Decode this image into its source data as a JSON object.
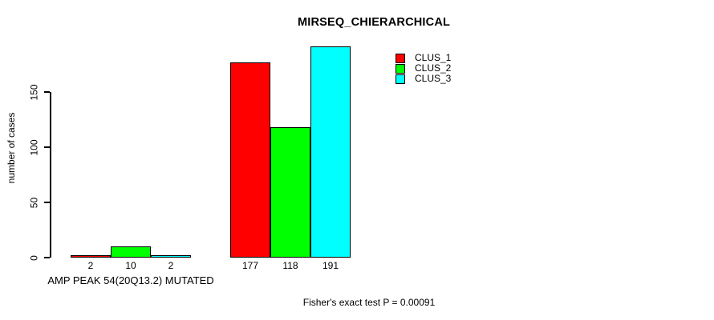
{
  "colors": {
    "background": "#ffffff",
    "axis": "#000000",
    "text": "#000000"
  },
  "chart_data": {
    "type": "bar",
    "title": "MIRSEQ_CHIERARCHICAL",
    "ylabel": "number of cases",
    "xlabel": "AMP PEAK 54(20Q13.2) MUTATED",
    "yticks": [
      0,
      50,
      100,
      150
    ],
    "ylim": [
      0,
      207
    ],
    "grid": false,
    "legend_position": "top-right",
    "series": [
      {
        "name": "CLUS_1",
        "color": "#ff0000"
      },
      {
        "name": "CLUS_2",
        "color": "#00ff00"
      },
      {
        "name": "CLUS_3",
        "color": "#00ffff"
      }
    ],
    "groups": [
      {
        "label": "AMP PEAK 54(20Q13.2) MUTATED",
        "values": [
          2,
          10,
          2
        ]
      },
      {
        "label": "",
        "values": [
          177,
          118,
          191
        ]
      }
    ],
    "bar_value_labels": [
      [
        "2",
        "10",
        "2"
      ],
      [
        "177",
        "118",
        "191"
      ]
    ],
    "annotation": "Fisher's exact test P = 0.00091"
  }
}
